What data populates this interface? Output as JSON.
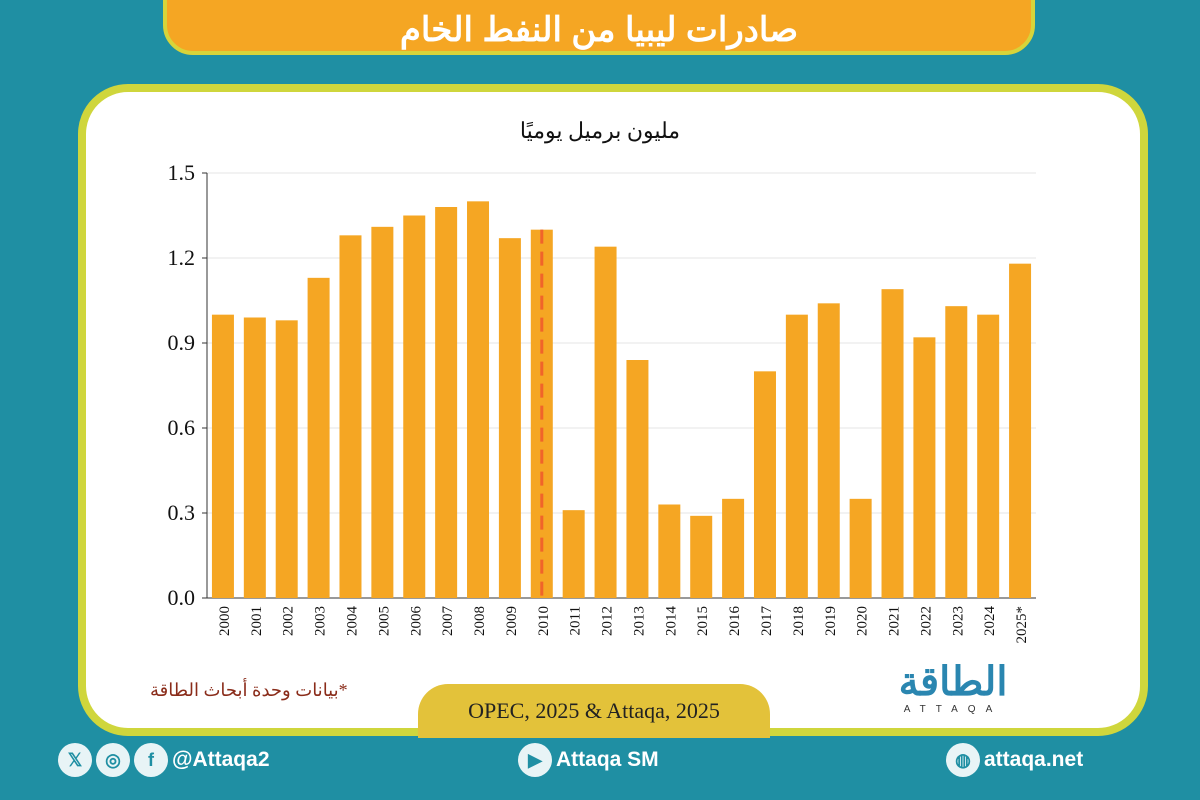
{
  "title": "صادرات ليبيا من النفط الخام",
  "note": "*بيانات وحدة أبحاث الطاقة",
  "source": "OPEC, 2025 & Attaqa, 2025",
  "logo": {
    "arabic": "الطاقة",
    "latin": "ATTAQA"
  },
  "footer": {
    "social_handle": "@Attaqa2",
    "youtube": "Attaqa SM",
    "website": "attaqa.net",
    "icons": [
      "x-icon",
      "instagram-icon",
      "facebook-icon",
      "youtube-icon",
      "globe-icon"
    ]
  },
  "colors": {
    "bar": "#f5a623",
    "background": "#1f8fa3",
    "border": "#cfd63c",
    "dashed_line": "#f0642a"
  },
  "chart_data": {
    "type": "bar",
    "ylabel": "مليون برميل يوميًا",
    "ylim": [
      0,
      1.5
    ],
    "yticks": [
      "0.0",
      "0.3",
      "0.6",
      "0.9",
      "1.2",
      "1.5"
    ],
    "grid": true,
    "categories": [
      "2000",
      "2001",
      "2002",
      "2003",
      "2004",
      "2005",
      "2006",
      "2007",
      "2008",
      "2009",
      "2010",
      "2011",
      "2012",
      "2013",
      "2014",
      "2015",
      "2016",
      "2017",
      "2018",
      "2019",
      "2020",
      "2021",
      "2022",
      "2023",
      "2024",
      "2025*"
    ],
    "values": [
      1.0,
      0.99,
      0.98,
      1.13,
      1.28,
      1.31,
      1.35,
      1.38,
      1.4,
      1.27,
      1.3,
      0.31,
      1.24,
      0.84,
      0.33,
      0.29,
      0.35,
      0.8,
      1.0,
      1.04,
      0.35,
      1.09,
      0.92,
      1.03,
      1.0,
      1.18
    ],
    "vertical_dashed_marker": "2010"
  }
}
